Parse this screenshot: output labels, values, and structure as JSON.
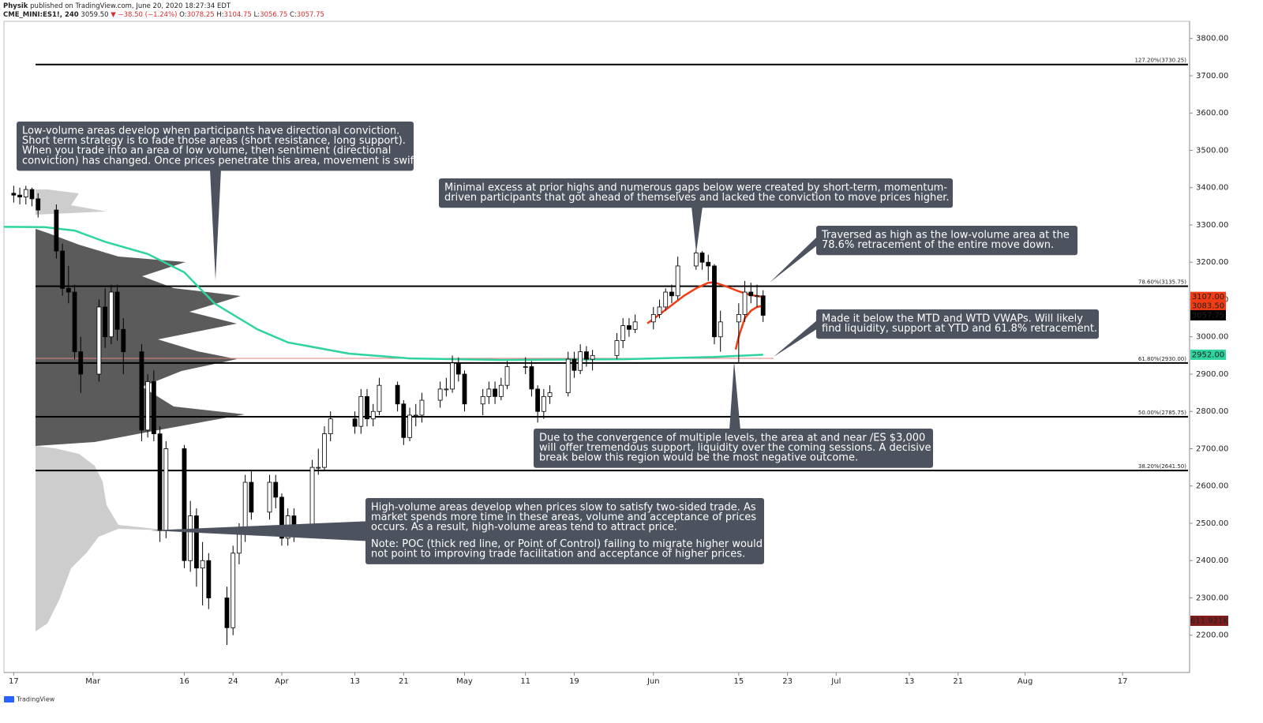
{
  "header": {
    "author": "Physik",
    "published": "published on TradingView.com, June 20, 2020 18:27:34 EDT",
    "symbol": "CME_MINI:ES1!, 240",
    "last": "3059.50",
    "change": "▼ −38.50 (−1.24%)",
    "open_label": "O:",
    "open": "3078.25",
    "high_label": "H:",
    "high": "3104.75",
    "low_label": "L:",
    "low": "3056.75",
    "close_label": "C:",
    "close": "3057.75"
  },
  "footer": "TradingView",
  "chart_data": {
    "type": "candlestick",
    "xlim": [
      -1.6,
      193
    ],
    "ylim": [
      2100,
      3846
    ],
    "xticks": [
      {
        "value": 0,
        "label": "17"
      },
      {
        "value": 13,
        "label": "Mar"
      },
      {
        "value": 28,
        "label": "16"
      },
      {
        "value": 36,
        "label": "24"
      },
      {
        "value": 44,
        "label": "Apr"
      },
      {
        "value": 56,
        "label": "13"
      },
      {
        "value": 64,
        "label": "21"
      },
      {
        "value": 74,
        "label": "May"
      },
      {
        "value": 84,
        "label": "11"
      },
      {
        "value": 92,
        "label": "19"
      },
      {
        "value": 105,
        "label": "Jun"
      },
      {
        "value": 119,
        "label": "15"
      },
      {
        "value": 127,
        "label": "23"
      },
      {
        "value": 135,
        "label": "Jul"
      },
      {
        "value": 147,
        "label": "13"
      },
      {
        "value": 155,
        "label": "21"
      },
      {
        "value": 166,
        "label": "Aug"
      },
      {
        "value": 182,
        "label": "17"
      }
    ],
    "yticks": [
      {
        "value": 2200,
        "label": "2200.00"
      },
      {
        "value": 2300,
        "label": "2300.00"
      },
      {
        "value": 2400,
        "label": "2400.00"
      },
      {
        "value": 2500,
        "label": "2500.00"
      },
      {
        "value": 2600,
        "label": "2600.00"
      },
      {
        "value": 2700,
        "label": "2700.00"
      },
      {
        "value": 2800,
        "label": "2800.00"
      },
      {
        "value": 2900,
        "label": "2900.00"
      },
      {
        "value": 3000,
        "label": "3000.00"
      },
      {
        "value": 3100,
        "label": "3100.00"
      },
      {
        "value": 3200,
        "label": "3200.00"
      },
      {
        "value": 3300,
        "label": "3300.00"
      },
      {
        "value": 3400,
        "label": "3400.00"
      },
      {
        "value": 3500,
        "label": "3500.00"
      },
      {
        "value": 3600,
        "label": "3600.00"
      },
      {
        "value": 3700,
        "label": "3700.00"
      },
      {
        "value": 3800,
        "label": "3800.00"
      }
    ],
    "x": [
      0,
      1,
      2,
      3,
      4,
      7,
      8,
      9,
      10,
      11,
      14,
      15,
      16,
      17,
      18,
      21,
      22,
      23,
      24,
      25,
      28,
      29,
      30,
      31,
      32,
      35,
      36,
      37,
      38,
      39,
      42,
      43,
      44,
      45,
      46,
      49,
      50,
      51,
      52,
      56,
      57,
      58,
      59,
      60,
      63,
      64,
      65,
      66,
      67,
      70,
      71,
      72,
      73,
      74,
      77,
      78,
      79,
      80,
      81,
      84,
      85,
      86,
      87,
      88,
      91,
      92,
      93,
      94,
      95,
      99,
      100,
      101,
      102,
      105,
      106,
      107,
      108,
      109,
      112,
      113,
      114,
      115,
      116,
      119,
      120,
      121,
      122,
      123
    ],
    "open": [
      3385,
      3380,
      3375,
      3395,
      3370,
      3340,
      3230,
      3130,
      3120,
      2960,
      2900,
      3080,
      3000,
      3120,
      3020,
      2960,
      2750,
      2880,
      2740,
      2480,
      2700,
      2400,
      2520,
      2380,
      2400,
      2300,
      2220,
      2420,
      2470,
      2610,
      2530,
      2610,
      2570,
      2460,
      2520,
      2480,
      2650,
      2650,
      2740,
      2780,
      2760,
      2840,
      2780,
      2800,
      2870,
      2820,
      2730,
      2790,
      2790,
      2830,
      2860,
      2860,
      2930,
      2900,
      2820,
      2840,
      2860,
      2840,
      2870,
      2920,
      2920,
      2860,
      2800,
      2840,
      2850,
      2940,
      2910,
      2960,
      2940,
      2950,
      2990,
      3030,
      3020,
      3040,
      3060,
      3080,
      3120,
      3110,
      3190,
      3225,
      3200,
      3190,
      3000,
      3040,
      3060,
      3120,
      3110,
      3110
    ],
    "high": [
      3405,
      3400,
      3405,
      3400,
      3385,
      3355,
      3250,
      3190,
      3140,
      3000,
      3100,
      3130,
      3140,
      3140,
      3050,
      2980,
      2900,
      2910,
      2760,
      2720,
      2710,
      2560,
      2540,
      2450,
      2420,
      2330,
      2440,
      2500,
      2630,
      2640,
      2630,
      2630,
      2580,
      2540,
      2540,
      2670,
      2700,
      2760,
      2800,
      2800,
      2860,
      2860,
      2820,
      2890,
      2880,
      2830,
      2810,
      2820,
      2850,
      2880,
      2890,
      2950,
      2945,
      2910,
      2860,
      2880,
      2880,
      2890,
      2935,
      2945,
      2935,
      2870,
      2860,
      2870,
      2960,
      2960,
      2980,
      2975,
      2965,
      3010,
      3050,
      3050,
      3060,
      3080,
      3100,
      3130,
      3140,
      3215,
      3233,
      3230,
      3220,
      3195,
      3070,
      3090,
      3150,
      3145,
      3140,
      3125
    ],
    "low": [
      3360,
      3355,
      3355,
      3350,
      3320,
      3210,
      3110,
      3090,
      2940,
      2850,
      2880,
      2970,
      2980,
      2990,
      2900,
      2720,
      2730,
      2720,
      2450,
      2460,
      2380,
      2370,
      2330,
      2280,
      2270,
      2174,
      2200,
      2390,
      2450,
      2510,
      2510,
      2540,
      2440,
      2440,
      2450,
      2470,
      2630,
      2640,
      2720,
      2740,
      2740,
      2760,
      2760,
      2790,
      2800,
      2710,
      2720,
      2760,
      2770,
      2810,
      2840,
      2850,
      2880,
      2800,
      2790,
      2820,
      2820,
      2830,
      2860,
      2900,
      2840,
      2770,
      2780,
      2820,
      2840,
      2890,
      2900,
      2920,
      2910,
      2940,
      2970,
      3000,
      3010,
      3020,
      3050,
      3070,
      3090,
      3100,
      3180,
      3180,
      3150,
      2980,
      2960,
      2930,
      3040,
      3090,
      3080,
      3040
    ],
    "close": [
      3380,
      3375,
      3395,
      3370,
      3340,
      3230,
      3130,
      3120,
      2960,
      2900,
      3080,
      3000,
      3120,
      3020,
      2960,
      2750,
      2880,
      2740,
      2480,
      2700,
      2400,
      2520,
      2380,
      2400,
      2300,
      2220,
      2420,
      2470,
      2610,
      2530,
      2610,
      2570,
      2460,
      2520,
      2480,
      2650,
      2650,
      2740,
      2780,
      2760,
      2840,
      2780,
      2800,
      2870,
      2820,
      2730,
      2790,
      2790,
      2830,
      2860,
      2860,
      2930,
      2900,
      2820,
      2840,
      2860,
      2840,
      2870,
      2920,
      2920,
      2860,
      2800,
      2840,
      2850,
      2940,
      2910,
      2960,
      2940,
      2950,
      2990,
      3030,
      3020,
      3040,
      3060,
      3080,
      3120,
      3110,
      3190,
      3225,
      3200,
      3190,
      3000,
      3040,
      3060,
      3120,
      3110,
      3110,
      3057.75
    ],
    "lines": [
      {
        "color": "#2ed3a0",
        "x": [
          -1.6,
          5,
          10,
          15,
          22,
          28,
          33,
          40,
          45,
          55,
          65,
          80,
          100,
          115,
          123
        ],
        "values": [
          3295,
          3294,
          3285,
          3255,
          3222,
          3173,
          3089,
          3020,
          2985,
          2955,
          2942,
          2938,
          2940,
          2946,
          2952
        ]
      },
      {
        "color": "#f23c14",
        "x": [
          104,
          106,
          108,
          110,
          112,
          114,
          115,
          117,
          119,
          121,
          123
        ],
        "values": [
          3036,
          3060,
          3085,
          3110,
          3130,
          3145,
          3146,
          3135,
          3122,
          3112,
          3107
        ]
      },
      {
        "color": "#f23c14",
        "x": [
          118.5,
          119,
          120,
          121,
          122,
          123
        ],
        "values": [
          2966,
          3000,
          3050,
          3070,
          3080,
          3083.5
        ]
      }
    ],
    "levels": [
      {
        "value": 3730.25,
        "label": "127.20%(3730.25)"
      },
      {
        "value": 3135.75,
        "label": "78.60%(3135.75)"
      },
      {
        "value": 2930,
        "label": "61.80%(2930.00)"
      },
      {
        "value": 2785.75,
        "label": "50.00%(2785.75)"
      },
      {
        "value": 2641.5,
        "label": "38.20%(2641.50)"
      }
    ],
    "price_tags": [
      {
        "value": 3107,
        "label": "3107.00",
        "color": "#f23c14"
      },
      {
        "value": 3083.5,
        "label": "3083.50",
        "color": "#f23c14"
      },
      {
        "value": 3057.75,
        "label": "3057.75",
        "color": "#000000"
      },
      {
        "value": 2952,
        "label": "2952.00",
        "color": "#2ed3a0"
      }
    ],
    "volume_tag": "611.921K",
    "annotations": [
      {
        "paragraphs": [
          [
            "Low-volume areas develop when participants have directional conviction.",
            "Short term strategy is to fade those areas (short resistance, long support).",
            "When you trade into an area of low volume, then sentiment (directional",
            "conviction) has changed. Once prices penetrate this area, movement is swift."
          ]
        ]
      },
      {
        "paragraphs": [
          [
            "Minimal excess at prior highs and numerous gaps below were created by short-term, momentum-",
            "driven participants that got ahead of themselves and lacked the conviction to move prices higher."
          ]
        ]
      },
      {
        "paragraphs": [
          [
            "Traversed as high as the low-volume area at the",
            "78.6% retracement of the entire move down."
          ]
        ]
      },
      {
        "paragraphs": [
          [
            "Made it below the MTD and WTD VWAPs. Will likely",
            "find liquidity, support at YTD and 61.8% retracement."
          ]
        ]
      },
      {
        "paragraphs": [
          [
            "Due to the convergence of multiple levels, the area at and near /ES $3,000",
            "will offer tremendous support, liquidity over the coming sessions. A decisive",
            "break below this region would be the most negative outcome."
          ]
        ]
      },
      {
        "paragraphs": [
          [
            "High-volume areas develop when prices slow to satisfy two-sided trade. As",
            "market spends more time in these areas, volume and acceptance of prices",
            "occurs. As a result, high-volume areas tend to attract price."
          ],
          [
            "Note: POC (thick red line, or Point of Control) failing to migrate higher would",
            "not point to improving trade facilitation and acceptance of higher prices."
          ]
        ]
      }
    ]
  }
}
